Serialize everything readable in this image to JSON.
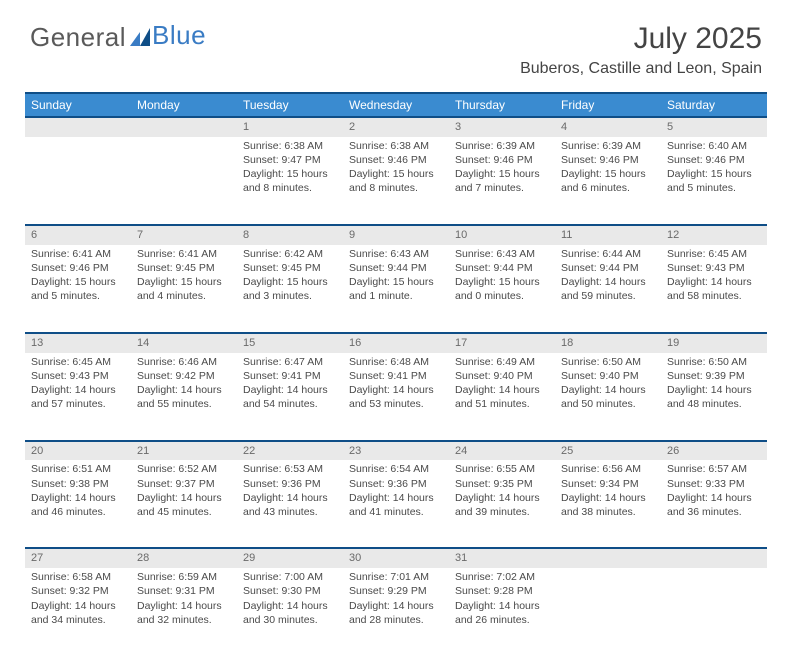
{
  "brand": {
    "name1": "General",
    "name2": "Blue"
  },
  "title": "July 2025",
  "location": "Buberos, Castille and Leon, Spain",
  "colors": {
    "header_bg": "#3a8bd0",
    "header_border": "#0f4e87",
    "daynum_bg": "#e9e9e9",
    "brand_blue": "#3a7cc4",
    "text": "#4a4a4a"
  },
  "day_headers": [
    "Sunday",
    "Monday",
    "Tuesday",
    "Wednesday",
    "Thursday",
    "Friday",
    "Saturday"
  ],
  "weeks": [
    [
      {
        "n": "",
        "sr": "",
        "ss": "",
        "dl": ""
      },
      {
        "n": "",
        "sr": "",
        "ss": "",
        "dl": ""
      },
      {
        "n": "1",
        "sr": "Sunrise: 6:38 AM",
        "ss": "Sunset: 9:47 PM",
        "dl": "Daylight: 15 hours and 8 minutes."
      },
      {
        "n": "2",
        "sr": "Sunrise: 6:38 AM",
        "ss": "Sunset: 9:46 PM",
        "dl": "Daylight: 15 hours and 8 minutes."
      },
      {
        "n": "3",
        "sr": "Sunrise: 6:39 AM",
        "ss": "Sunset: 9:46 PM",
        "dl": "Daylight: 15 hours and 7 minutes."
      },
      {
        "n": "4",
        "sr": "Sunrise: 6:39 AM",
        "ss": "Sunset: 9:46 PM",
        "dl": "Daylight: 15 hours and 6 minutes."
      },
      {
        "n": "5",
        "sr": "Sunrise: 6:40 AM",
        "ss": "Sunset: 9:46 PM",
        "dl": "Daylight: 15 hours and 5 minutes."
      }
    ],
    [
      {
        "n": "6",
        "sr": "Sunrise: 6:41 AM",
        "ss": "Sunset: 9:46 PM",
        "dl": "Daylight: 15 hours and 5 minutes."
      },
      {
        "n": "7",
        "sr": "Sunrise: 6:41 AM",
        "ss": "Sunset: 9:45 PM",
        "dl": "Daylight: 15 hours and 4 minutes."
      },
      {
        "n": "8",
        "sr": "Sunrise: 6:42 AM",
        "ss": "Sunset: 9:45 PM",
        "dl": "Daylight: 15 hours and 3 minutes."
      },
      {
        "n": "9",
        "sr": "Sunrise: 6:43 AM",
        "ss": "Sunset: 9:44 PM",
        "dl": "Daylight: 15 hours and 1 minute."
      },
      {
        "n": "10",
        "sr": "Sunrise: 6:43 AM",
        "ss": "Sunset: 9:44 PM",
        "dl": "Daylight: 15 hours and 0 minutes."
      },
      {
        "n": "11",
        "sr": "Sunrise: 6:44 AM",
        "ss": "Sunset: 9:44 PM",
        "dl": "Daylight: 14 hours and 59 minutes."
      },
      {
        "n": "12",
        "sr": "Sunrise: 6:45 AM",
        "ss": "Sunset: 9:43 PM",
        "dl": "Daylight: 14 hours and 58 minutes."
      }
    ],
    [
      {
        "n": "13",
        "sr": "Sunrise: 6:45 AM",
        "ss": "Sunset: 9:43 PM",
        "dl": "Daylight: 14 hours and 57 minutes."
      },
      {
        "n": "14",
        "sr": "Sunrise: 6:46 AM",
        "ss": "Sunset: 9:42 PM",
        "dl": "Daylight: 14 hours and 55 minutes."
      },
      {
        "n": "15",
        "sr": "Sunrise: 6:47 AM",
        "ss": "Sunset: 9:41 PM",
        "dl": "Daylight: 14 hours and 54 minutes."
      },
      {
        "n": "16",
        "sr": "Sunrise: 6:48 AM",
        "ss": "Sunset: 9:41 PM",
        "dl": "Daylight: 14 hours and 53 minutes."
      },
      {
        "n": "17",
        "sr": "Sunrise: 6:49 AM",
        "ss": "Sunset: 9:40 PM",
        "dl": "Daylight: 14 hours and 51 minutes."
      },
      {
        "n": "18",
        "sr": "Sunrise: 6:50 AM",
        "ss": "Sunset: 9:40 PM",
        "dl": "Daylight: 14 hours and 50 minutes."
      },
      {
        "n": "19",
        "sr": "Sunrise: 6:50 AM",
        "ss": "Sunset: 9:39 PM",
        "dl": "Daylight: 14 hours and 48 minutes."
      }
    ],
    [
      {
        "n": "20",
        "sr": "Sunrise: 6:51 AM",
        "ss": "Sunset: 9:38 PM",
        "dl": "Daylight: 14 hours and 46 minutes."
      },
      {
        "n": "21",
        "sr": "Sunrise: 6:52 AM",
        "ss": "Sunset: 9:37 PM",
        "dl": "Daylight: 14 hours and 45 minutes."
      },
      {
        "n": "22",
        "sr": "Sunrise: 6:53 AM",
        "ss": "Sunset: 9:36 PM",
        "dl": "Daylight: 14 hours and 43 minutes."
      },
      {
        "n": "23",
        "sr": "Sunrise: 6:54 AM",
        "ss": "Sunset: 9:36 PM",
        "dl": "Daylight: 14 hours and 41 minutes."
      },
      {
        "n": "24",
        "sr": "Sunrise: 6:55 AM",
        "ss": "Sunset: 9:35 PM",
        "dl": "Daylight: 14 hours and 39 minutes."
      },
      {
        "n": "25",
        "sr": "Sunrise: 6:56 AM",
        "ss": "Sunset: 9:34 PM",
        "dl": "Daylight: 14 hours and 38 minutes."
      },
      {
        "n": "26",
        "sr": "Sunrise: 6:57 AM",
        "ss": "Sunset: 9:33 PM",
        "dl": "Daylight: 14 hours and 36 minutes."
      }
    ],
    [
      {
        "n": "27",
        "sr": "Sunrise: 6:58 AM",
        "ss": "Sunset: 9:32 PM",
        "dl": "Daylight: 14 hours and 34 minutes."
      },
      {
        "n": "28",
        "sr": "Sunrise: 6:59 AM",
        "ss": "Sunset: 9:31 PM",
        "dl": "Daylight: 14 hours and 32 minutes."
      },
      {
        "n": "29",
        "sr": "Sunrise: 7:00 AM",
        "ss": "Sunset: 9:30 PM",
        "dl": "Daylight: 14 hours and 30 minutes."
      },
      {
        "n": "30",
        "sr": "Sunrise: 7:01 AM",
        "ss": "Sunset: 9:29 PM",
        "dl": "Daylight: 14 hours and 28 minutes."
      },
      {
        "n": "31",
        "sr": "Sunrise: 7:02 AM",
        "ss": "Sunset: 9:28 PM",
        "dl": "Daylight: 14 hours and 26 minutes."
      },
      {
        "n": "",
        "sr": "",
        "ss": "",
        "dl": ""
      },
      {
        "n": "",
        "sr": "",
        "ss": "",
        "dl": ""
      }
    ]
  ]
}
